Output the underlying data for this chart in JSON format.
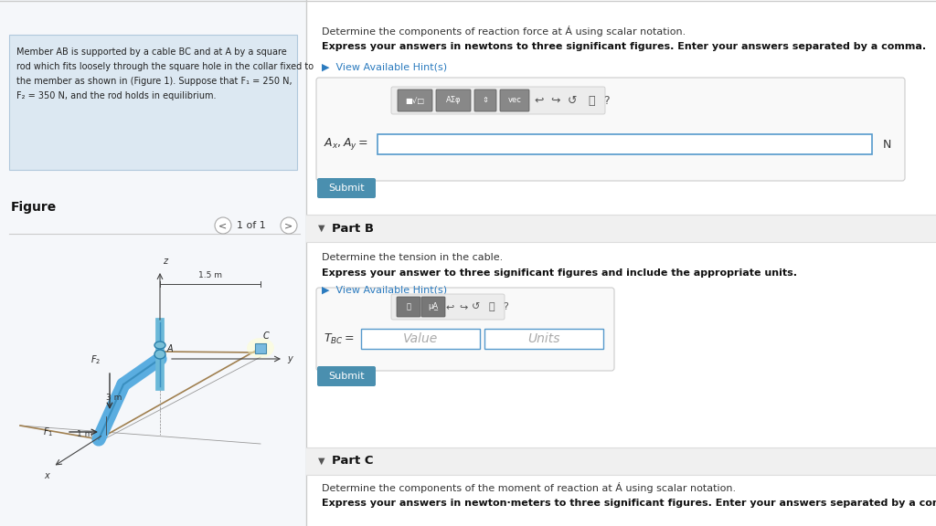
{
  "bg_left": "#f5f7fa",
  "bg_right": "#ffffff",
  "divider_color": "#cccccc",
  "text_color": "#333333",
  "submit_color": "#4a8faf",
  "hint_color": "#2b7bbf",
  "input_border": "#5599cc",
  "toolbar_bg": "#777777",
  "problem_text_lines": [
    "Member AB is supported by a cable BC and at A by a square",
    "rod which fits loosely through the square hole in the collar fixed to",
    "the member as shown in (Figure 1). Suppose that F₁ = 250 N,",
    "F₂ = 350 N, and the rod holds in equilibrium."
  ],
  "title_text": "Determine the components of reaction force at Á using scalar notation.",
  "bold_text_a": "Express your answers in newtons to three significant figures. Enter your answers separated by a comma.",
  "hint_text": "▶  View Available Hint(s)",
  "label_ax": "A_x, A_y =",
  "unit_n": "N",
  "part_b_header": "Part B",
  "part_b_desc": "Determine the tension in the cable.",
  "part_b_bold": "Express your answer to three significant figures and include the appropriate units.",
  "tbc_label": "T_{BC} =",
  "value_placeholder": "Value",
  "units_placeholder": "Units",
  "part_c_header": "Part C",
  "part_c_desc": "Determine the components of the moment of reaction at Á using scalar notation.",
  "part_c_bold": "Express your answers in newton·meters to three significant figures. Enter your answers separated by a comma.",
  "figure_label": "Figure",
  "nav_text": "1 of 1",
  "top_border_color": "#cccccc",
  "part_header_bg": "#f0f0f0",
  "problem_box_bg": "#dce8f2",
  "problem_box_edge": "#b0c8dc"
}
